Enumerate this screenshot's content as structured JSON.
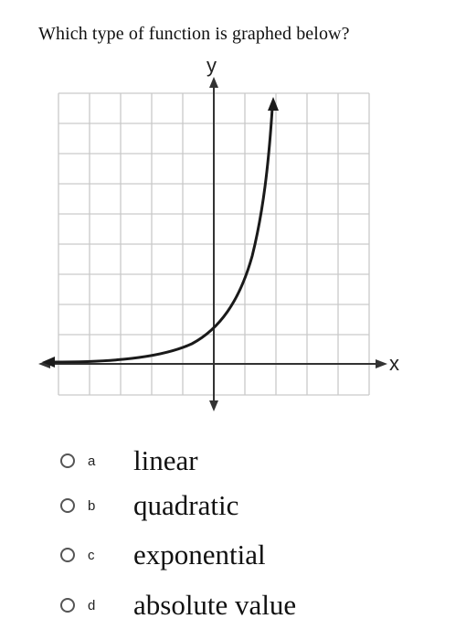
{
  "question": {
    "text": "Which type of function is graphed below?"
  },
  "graph": {
    "y_label": "y",
    "x_label": "x"
  },
  "choices": [
    {
      "letter": "a",
      "text": "linear"
    },
    {
      "letter": "b",
      "text": "quadratic"
    },
    {
      "letter": "c",
      "text": "exponential"
    },
    {
      "letter": "d",
      "text": "absolute value"
    }
  ]
}
